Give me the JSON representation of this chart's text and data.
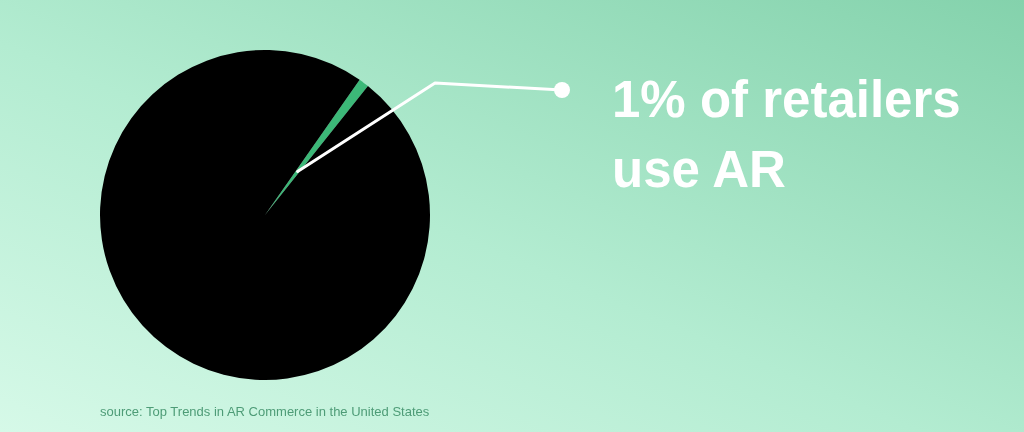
{
  "chart_data": {
    "type": "pie",
    "categories": [
      "1% of retailers use AR",
      null
    ],
    "values": [
      1,
      99
    ],
    "colors": [
      "#3cb878",
      "#000000"
    ],
    "legend": false,
    "annotations": [
      "source: Top Trends in AR Commerce in the United States"
    ]
  }
}
